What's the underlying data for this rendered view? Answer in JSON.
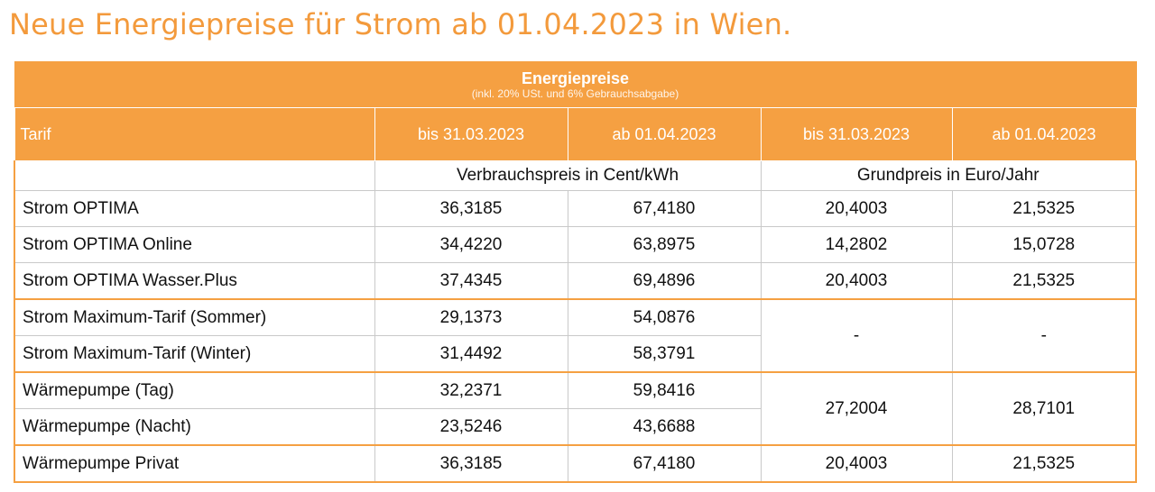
{
  "page_title": "Neue Energiepreise für Strom ab 01.04.2023 in Wien.",
  "colors": {
    "accent": "#f5a042",
    "title": "#f39a3c"
  },
  "table": {
    "header_title": "Energiepreise",
    "header_subtitle": "(inkl. 20% USt. und 6% Gebrauchsabgabe)",
    "columns": [
      "Tarif",
      "bis 31.03.2023",
      "ab 01.04.2023",
      "bis 31.03.2023",
      "ab 01.04.2023"
    ],
    "unit_verbrauch": "Verbrauchspreis in Cent/kWh",
    "unit_grund": "Grundpreis in Euro/Jahr",
    "rows": [
      {
        "name": "Strom OPTIMA",
        "v_bis": "36,3185",
        "v_ab": "67,4180",
        "g_bis": "20,4003",
        "g_ab": "21,5325"
      },
      {
        "name": "Strom OPTIMA Online",
        "v_bis": "34,4220",
        "v_ab": "63,8975",
        "g_bis": "14,2802",
        "g_ab": "15,0728"
      },
      {
        "name": "Strom OPTIMA Wasser.Plus",
        "v_bis": "37,4345",
        "v_ab": "69,4896",
        "g_bis": "20,4003",
        "g_ab": "21,5325"
      },
      {
        "name": "Strom Maximum-Tarif (Sommer)",
        "v_bis": "29,1373",
        "v_ab": "54,0876",
        "g_bis": "-",
        "g_ab": "-"
      },
      {
        "name": "Strom Maximum-Tarif (Winter)",
        "v_bis": "31,4492",
        "v_ab": "58,3791"
      },
      {
        "name": "Wärmepumpe (Tag)",
        "v_bis": "32,2371",
        "v_ab": "59,8416",
        "g_bis": "27,2004",
        "g_ab": "28,7101"
      },
      {
        "name": "Wärmepumpe (Nacht)",
        "v_bis": "23,5246",
        "v_ab": "43,6688"
      },
      {
        "name": "Wärmepumpe Privat",
        "v_bis": "36,3185",
        "v_ab": "67,4180",
        "g_bis": "20,4003",
        "g_ab": "21,5325"
      }
    ]
  }
}
